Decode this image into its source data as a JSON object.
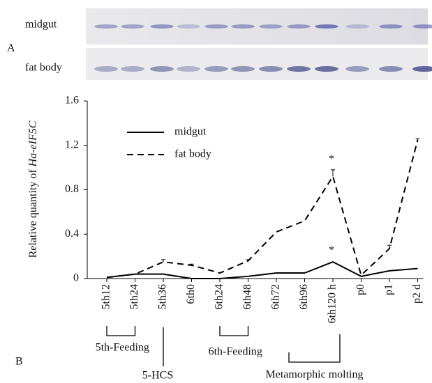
{
  "panel_labels": [
    "A",
    "B"
  ],
  "blot": {
    "lanes": [
      "midgut",
      "fat body"
    ]
  },
  "chart_data": {
    "type": "line",
    "ylabel": {
      "text": "Relative quantity of",
      "gene": "Ha-eIF5C"
    },
    "categories": [
      "5th12",
      "5th24",
      "5th36",
      "6th0",
      "6th24",
      "6th48",
      "6th72",
      "6th96",
      "6th120 h",
      "p0",
      "p1",
      "p2 d"
    ],
    "series": [
      {
        "name": "midgut",
        "color": "#000000",
        "dash": false,
        "values": [
          0.01,
          0.04,
          0.04,
          0.0,
          0.0,
          0.02,
          0.05,
          0.05,
          0.15,
          0.02,
          0.07,
          0.09
        ]
      },
      {
        "name": "fat body",
        "color": "#000000",
        "dash": true,
        "values": [
          0.01,
          0.04,
          0.15,
          0.12,
          0.05,
          0.16,
          0.42,
          0.52,
          0.92,
          0.03,
          0.27,
          1.25
        ],
        "errors": [
          null,
          null,
          0.02,
          0.01,
          null,
          0.01,
          null,
          null,
          0.06,
          null,
          0.03,
          0.01
        ]
      }
    ],
    "ylim": [
      0,
      1.6
    ],
    "yticks": [
      0,
      0.4,
      0.8,
      1.2,
      1.6
    ],
    "annotations": [
      "*",
      "*"
    ],
    "groups": [
      "5th-Feeding",
      "5-HCS",
      "6th-Feeding",
      "Metamorphic molting"
    ]
  }
}
